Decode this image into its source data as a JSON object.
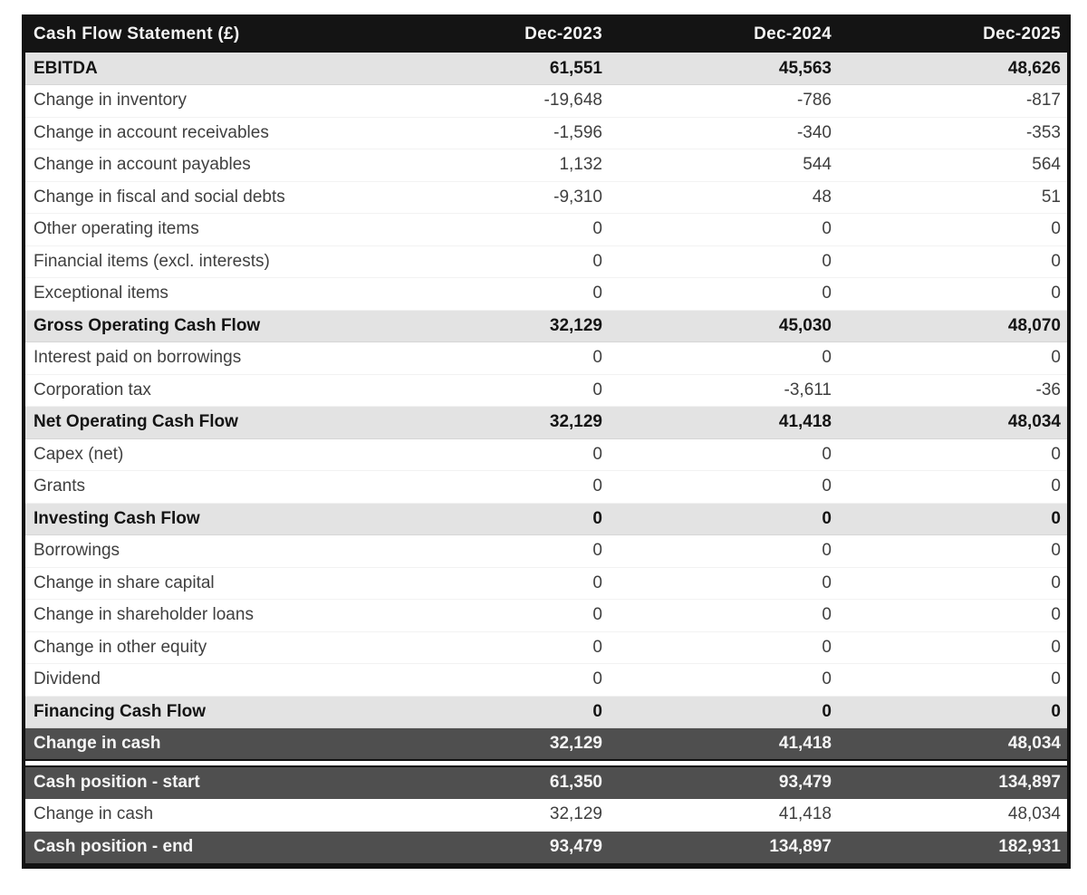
{
  "table": {
    "title": "Cash Flow Statement (£)",
    "columns": [
      "Dec-2023",
      "Dec-2024",
      "Dec-2025"
    ],
    "colors": {
      "header_bg": "#141414",
      "header_text": "#f4f4f4",
      "subtotal_bg": "#e3e3e3",
      "dark_row_bg": "#4f4f4f",
      "normal_text": "#3f3f3f"
    },
    "rows": [
      {
        "label": "EBITDA",
        "values": [
          "61,551",
          "45,563",
          "48,626"
        ],
        "style": "subtotal"
      },
      {
        "label": "Change in inventory",
        "values": [
          "-19,648",
          "-786",
          "-817"
        ],
        "style": "normal"
      },
      {
        "label": "Change in account receivables",
        "values": [
          "-1,596",
          "-340",
          "-353"
        ],
        "style": "normal"
      },
      {
        "label": "Change in account payables",
        "values": [
          "1,132",
          "544",
          "564"
        ],
        "style": "normal"
      },
      {
        "label": "Change in fiscal and social debts",
        "values": [
          "-9,310",
          "48",
          "51"
        ],
        "style": "normal"
      },
      {
        "label": "Other operating items",
        "values": [
          "0",
          "0",
          "0"
        ],
        "style": "normal"
      },
      {
        "label": "Financial items (excl. interests)",
        "values": [
          "0",
          "0",
          "0"
        ],
        "style": "normal"
      },
      {
        "label": "Exceptional items",
        "values": [
          "0",
          "0",
          "0"
        ],
        "style": "normal"
      },
      {
        "label": "Gross Operating Cash Flow",
        "values": [
          "32,129",
          "45,030",
          "48,070"
        ],
        "style": "subtotal"
      },
      {
        "label": "Interest paid on borrowings",
        "values": [
          "0",
          "0",
          "0"
        ],
        "style": "normal"
      },
      {
        "label": "Corporation tax",
        "values": [
          "0",
          "-3,611",
          "-36"
        ],
        "style": "normal"
      },
      {
        "label": "Net Operating Cash Flow",
        "values": [
          "32,129",
          "41,418",
          "48,034"
        ],
        "style": "subtotal"
      },
      {
        "label": "Capex (net)",
        "values": [
          "0",
          "0",
          "0"
        ],
        "style": "normal"
      },
      {
        "label": "Grants",
        "values": [
          "0",
          "0",
          "0"
        ],
        "style": "normal"
      },
      {
        "label": "Investing Cash Flow",
        "values": [
          "0",
          "0",
          "0"
        ],
        "style": "subtotal"
      },
      {
        "label": "Borrowings",
        "values": [
          "0",
          "0",
          "0"
        ],
        "style": "normal"
      },
      {
        "label": "Change in share capital",
        "values": [
          "0",
          "0",
          "0"
        ],
        "style": "normal"
      },
      {
        "label": "Change in shareholder loans",
        "values": [
          "0",
          "0",
          "0"
        ],
        "style": "normal"
      },
      {
        "label": "Change in other equity",
        "values": [
          "0",
          "0",
          "0"
        ],
        "style": "normal"
      },
      {
        "label": "Dividend",
        "values": [
          "0",
          "0",
          "0"
        ],
        "style": "normal"
      },
      {
        "label": "Financing Cash Flow",
        "values": [
          "0",
          "0",
          "0"
        ],
        "style": "subtotal"
      },
      {
        "label": "Change in cash",
        "values": [
          "32,129",
          "41,418",
          "48,034"
        ],
        "style": "dark"
      },
      {
        "style": "spacer"
      },
      {
        "label": "Cash position - start",
        "values": [
          "61,350",
          "93,479",
          "134,897"
        ],
        "style": "dark"
      },
      {
        "label": "Change in cash",
        "values": [
          "32,129",
          "41,418",
          "48,034"
        ],
        "style": "normal"
      },
      {
        "label": "Cash position - end",
        "values": [
          "93,479",
          "134,897",
          "182,931"
        ],
        "style": "dark"
      }
    ]
  }
}
